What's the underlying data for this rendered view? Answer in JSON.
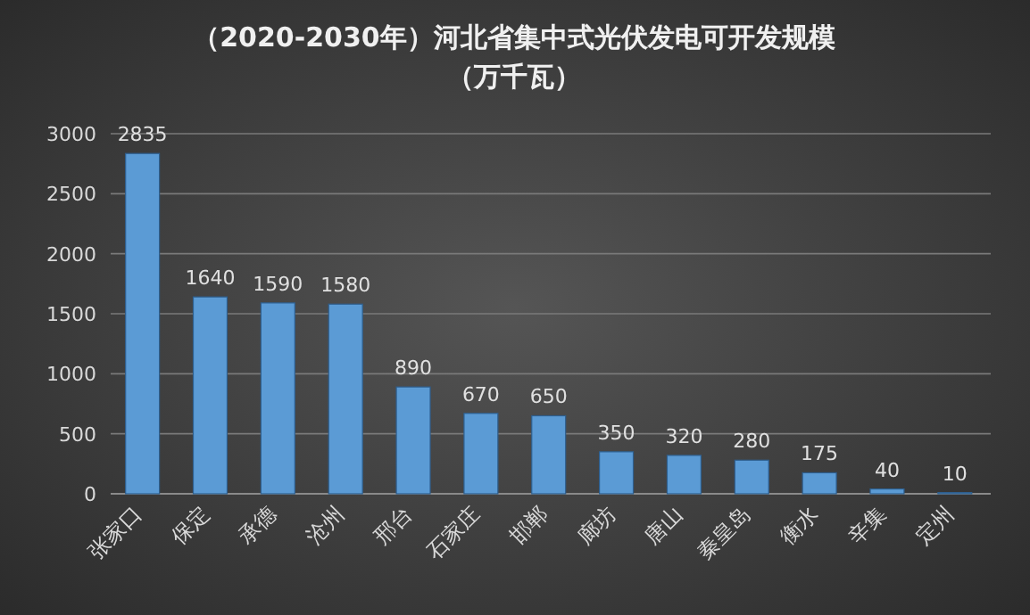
{
  "chart_data": {
    "type": "bar",
    "title": "（2020-2030年）河北省集中式光伏发电可开发规模",
    "subtitle": "（万千瓦）",
    "categories": [
      "张家口",
      "保定",
      "承德",
      "沧州",
      "邢台",
      "石家庄",
      "邯郸",
      "廊坊",
      "唐山",
      "秦皇岛",
      "衡水",
      "辛集",
      "定州"
    ],
    "values": [
      2835,
      1640,
      1590,
      1580,
      890,
      670,
      650,
      350,
      320,
      280,
      175,
      40,
      10
    ],
    "color": "#5b9bd5",
    "ylim": [
      0,
      3000
    ],
    "yticks": [
      0,
      500,
      1000,
      1500,
      2000,
      2500,
      3000
    ],
    "grid": "y",
    "data_labels": true
  }
}
